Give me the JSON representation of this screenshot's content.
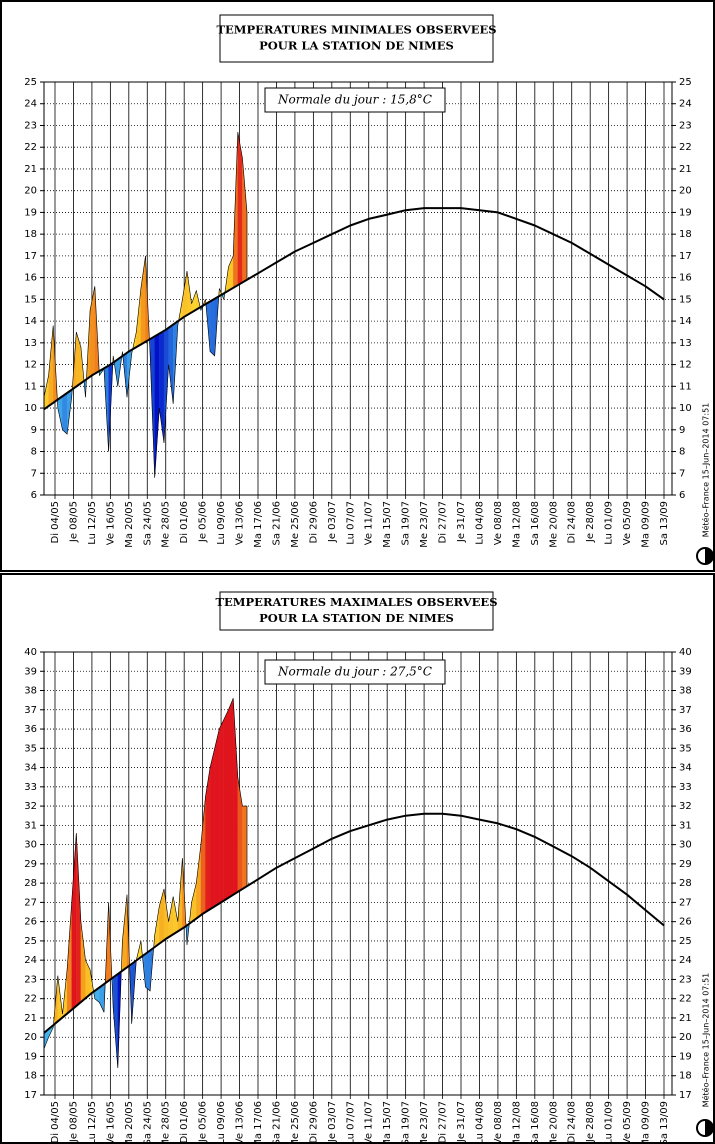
{
  "chart_data": [
    {
      "type": "line",
      "title": "TEMPERATURES MINIMALES OBSERVEES",
      "subtitle": "POUR LA STATION DE NIMES",
      "annotation": "Normale du jour : 15,8°C",
      "source": "Météo–France 15–Jun–2014 07:51",
      "categories": [
        "Di 04/05",
        "Je 08/05",
        "Lu 12/05",
        "Ve 16/05",
        "Ma 20/05",
        "Sa 24/05",
        "Me 28/05",
        "Di 01/06",
        "Je 05/06",
        "Lu 09/06",
        "Ve 13/06",
        "Ma 17/06",
        "Sa 21/06",
        "Me 25/06",
        "Di 29/06",
        "Je 03/07",
        "Lu 07/07",
        "Ve 11/07",
        "Ma 15/07",
        "Sa 19/07",
        "Me 23/07",
        "Di 27/07",
        "Je 31/07",
        "Lu 04/08",
        "Ve 08/08",
        "Ma 12/08",
        "Sa 16/08",
        "Me 20/08",
        "Di 24/08",
        "Je 28/08",
        "Lu 01/09",
        "Ve 05/09",
        "Ma 09/09",
        "Sa 13/09"
      ],
      "observed": [
        10.5,
        11.5,
        13.8,
        10.0,
        9.0,
        8.8,
        10.5,
        13.5,
        12.8,
        10.5,
        14.5,
        15.6,
        11.5,
        11.8,
        8.0,
        12.4,
        11.0,
        12.6,
        10.5,
        12.5,
        13.5,
        15.5,
        17.0,
        12.5,
        6.8,
        10.0,
        8.4,
        12.0,
        10.2,
        13.8,
        15.0,
        16.3,
        14.8,
        15.4,
        14.5,
        15.0,
        12.6,
        12.4,
        15.5,
        15.0,
        16.5,
        17.0,
        22.7,
        21.5,
        19.0
      ],
      "normal": [
        10.3,
        10.9,
        11.5,
        12.0,
        12.6,
        13.1,
        13.6,
        14.2,
        14.7,
        15.2,
        15.7,
        16.2,
        16.7,
        17.2,
        17.6,
        18.0,
        18.4,
        18.7,
        18.9,
        19.1,
        19.2,
        19.2,
        19.2,
        19.1,
        19.0,
        18.7,
        18.4,
        18.0,
        17.6,
        17.1,
        16.6,
        16.1,
        15.6,
        15.0
      ],
      "normal_color": "#000000",
      "ylim": [
        6,
        25
      ],
      "yticks": [
        6,
        7,
        8,
        9,
        10,
        11,
        12,
        13,
        14,
        15,
        16,
        17,
        18,
        19,
        20,
        21,
        22,
        23,
        24,
        25
      ],
      "grid": true
    },
    {
      "type": "line",
      "title": "TEMPERATURES MAXIMALES OBSERVEES",
      "subtitle": "POUR LA STATION DE NIMES",
      "annotation": "Normale du jour : 27,5°C",
      "source": "Météo–France 15–Jun–2014 07:51",
      "categories": [
        "Di 04/05",
        "Je 08/05",
        "Lu 12/05",
        "Ve 16/05",
        "Ma 20/05",
        "Sa 24/05",
        "Me 28/05",
        "Di 01/06",
        "Je 05/06",
        "Lu 09/06",
        "Ve 13/06",
        "Ma 17/06",
        "Sa 21/06",
        "Me 25/06",
        "Di 29/06",
        "Je 03/07",
        "Lu 07/07",
        "Ve 11/07",
        "Ma 15/07",
        "Sa 19/07",
        "Me 23/07",
        "Di 27/07",
        "Je 31/07",
        "Lu 04/08",
        "Ve 08/08",
        "Ma 12/08",
        "Sa 16/08",
        "Me 20/08",
        "Di 24/08",
        "Je 28/08",
        "Lu 01/09",
        "Ve 05/09",
        "Ma 09/09",
        "Sa 13/09"
      ],
      "observed": [
        19.4,
        20.0,
        20.5,
        23.2,
        21.2,
        23.5,
        27.0,
        30.6,
        26.0,
        24.0,
        23.5,
        22.0,
        21.8,
        21.3,
        27.0,
        21.5,
        18.4,
        25.0,
        27.4,
        20.7,
        24.0,
        25.0,
        22.6,
        22.4,
        25.3,
        26.8,
        27.7,
        26.0,
        27.3,
        26.0,
        29.3,
        24.8,
        27.0,
        28.0,
        30.0,
        32.5,
        34.0,
        35.0,
        36.0,
        36.5,
        37.0,
        37.6,
        33.5,
        32.0,
        32.0
      ],
      "normal": [
        20.7,
        21.5,
        22.3,
        23.0,
        23.7,
        24.4,
        25.1,
        25.7,
        26.4,
        27.0,
        27.6,
        28.2,
        28.8,
        29.3,
        29.8,
        30.3,
        30.7,
        31.0,
        31.3,
        31.5,
        31.6,
        31.6,
        31.5,
        31.3,
        31.1,
        30.8,
        30.4,
        29.9,
        29.4,
        28.8,
        28.1,
        27.4,
        26.6,
        25.8
      ],
      "normal_color": "#000000",
      "ylim": [
        17,
        40
      ],
      "yticks": [
        17,
        18,
        19,
        20,
        21,
        22,
        23,
        24,
        25,
        26,
        27,
        28,
        29,
        30,
        31,
        32,
        33,
        34,
        35,
        36,
        37,
        38,
        39,
        40
      ],
      "grid": true
    }
  ]
}
